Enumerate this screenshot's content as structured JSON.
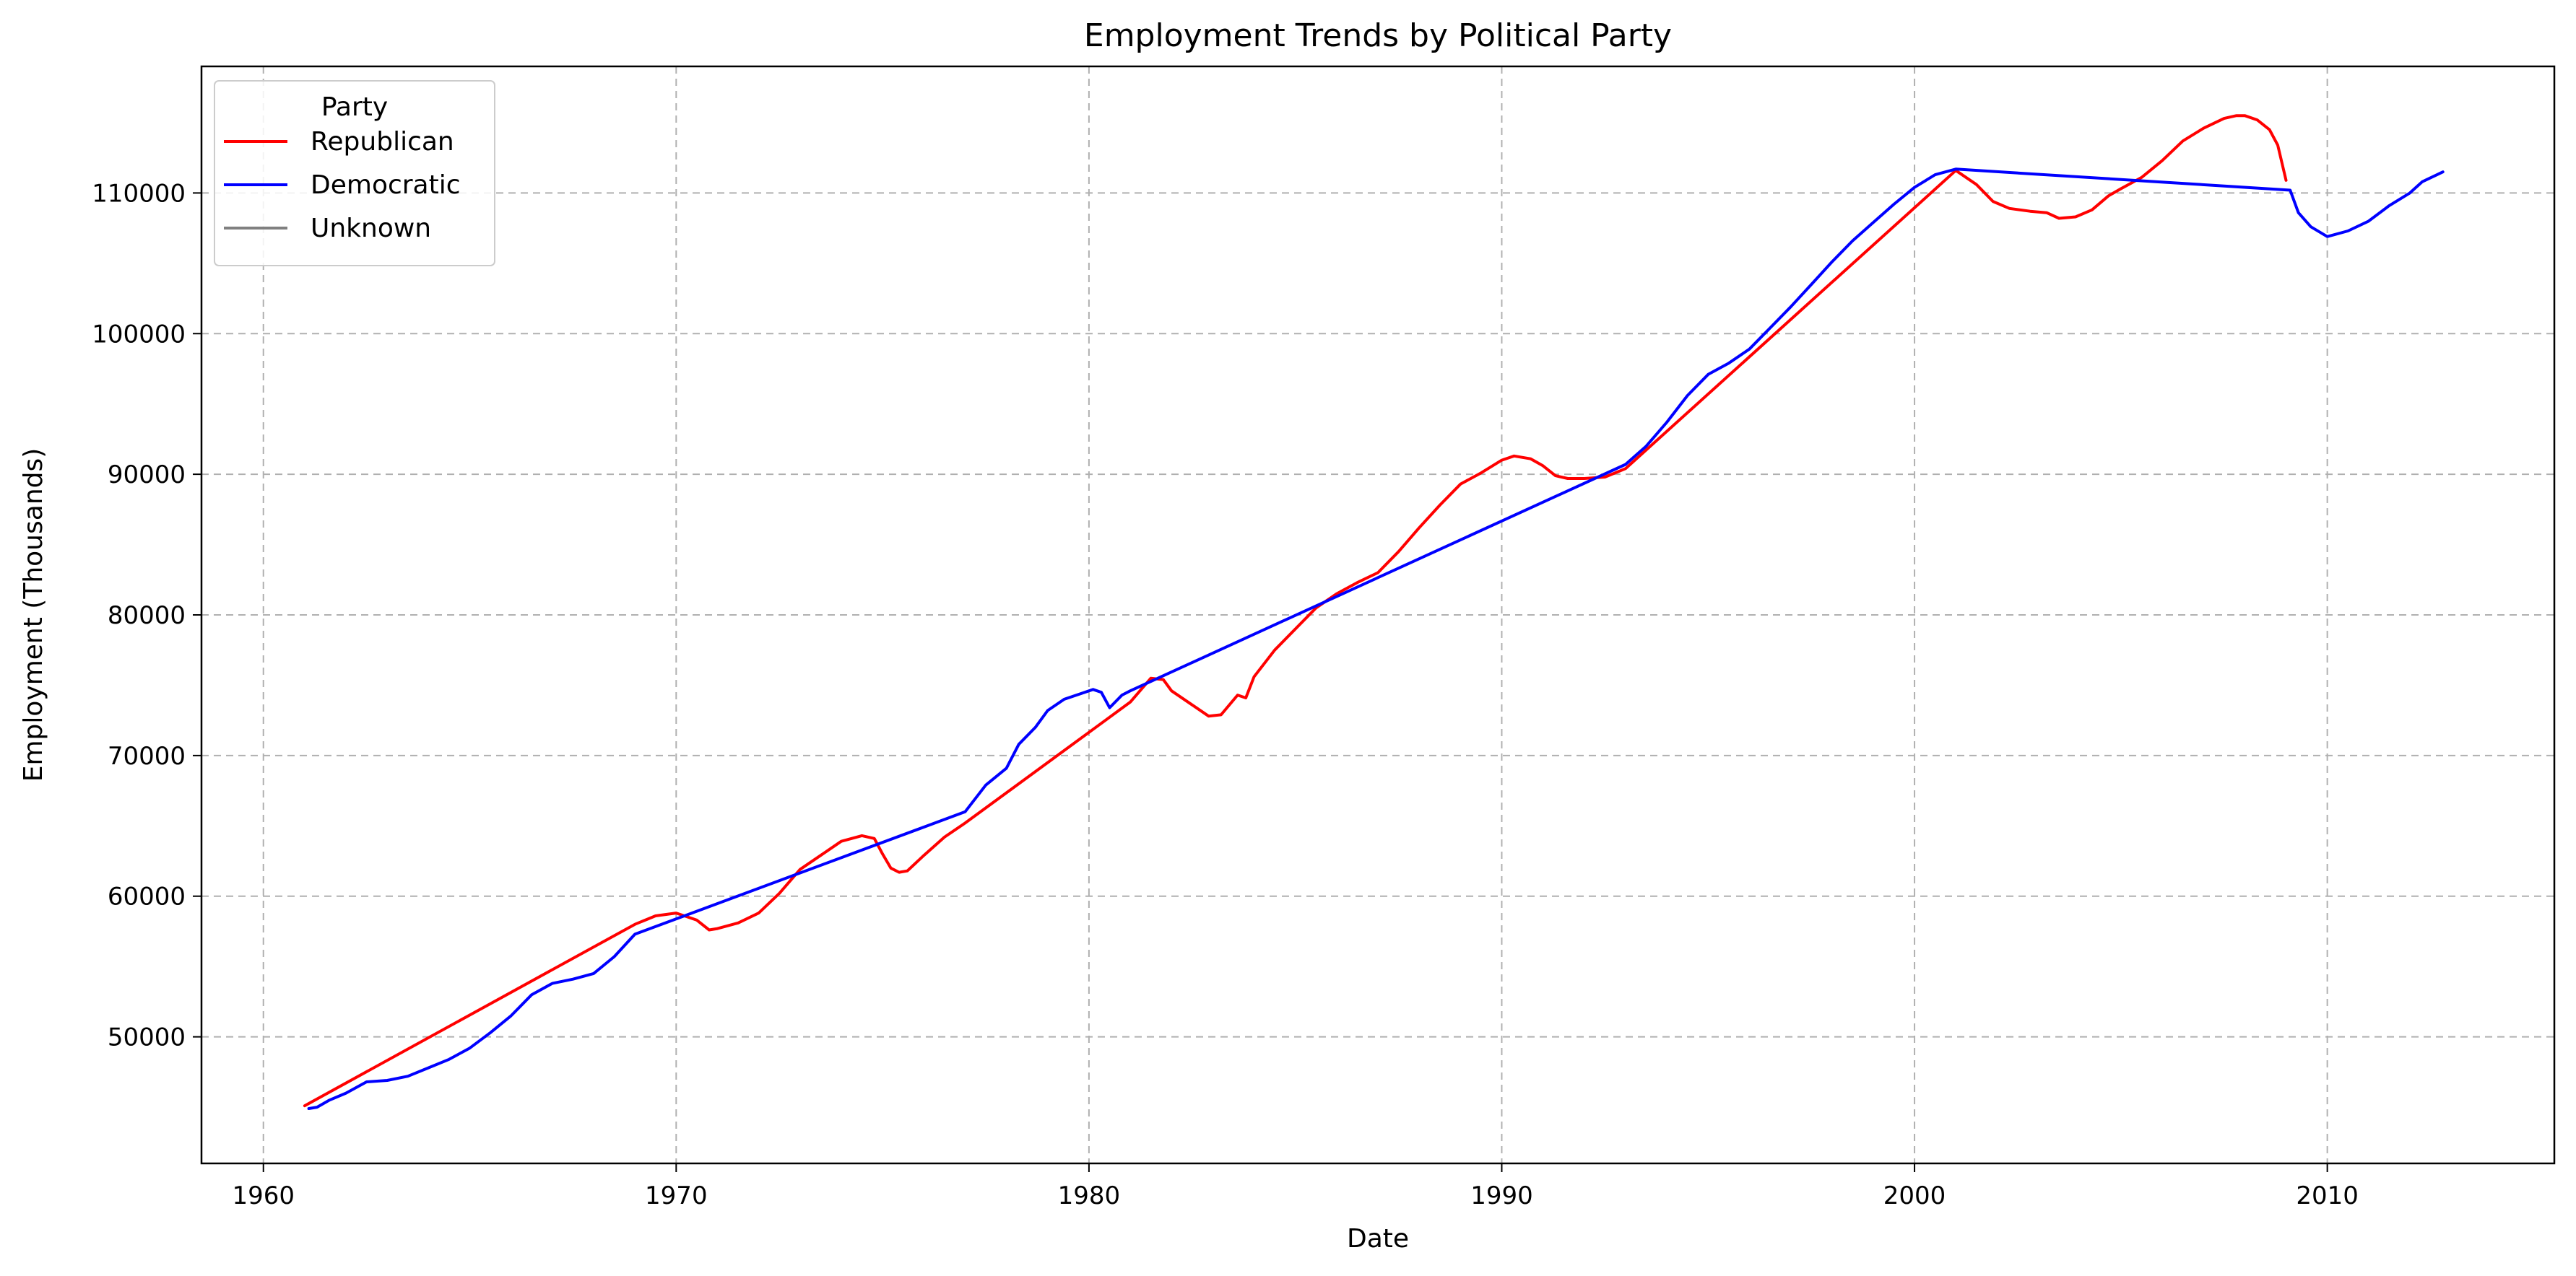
{
  "chart_data": {
    "type": "line",
    "title": "Employment Trends by Political Party",
    "xlabel": "Date",
    "ylabel": "Employment (Thousands)",
    "xlim": [
      1958.5,
      2015.5
    ],
    "ylim": [
      41000,
      119000
    ],
    "x_ticks": [
      1960,
      1970,
      1980,
      1990,
      2000,
      2010
    ],
    "y_ticks": [
      50000,
      60000,
      70000,
      80000,
      90000,
      100000,
      110000
    ],
    "grid": true,
    "legend": {
      "title": "Party",
      "placement": "top-left",
      "entries": [
        "Republican",
        "Democratic",
        "Unknown"
      ]
    },
    "series": [
      {
        "name": "Republican",
        "color": "#ff0000",
        "points": [
          [
            1961.0,
            45100
          ],
          [
            1969.0,
            58000
          ],
          [
            1969.5,
            58600
          ],
          [
            1970.0,
            58800
          ],
          [
            1970.5,
            58300
          ],
          [
            1970.8,
            57600
          ],
          [
            1971.0,
            57700
          ],
          [
            1971.5,
            58100
          ],
          [
            1972.0,
            58800
          ],
          [
            1972.5,
            60200
          ],
          [
            1973.0,
            61900
          ],
          [
            1973.5,
            62900
          ],
          [
            1974.0,
            63900
          ],
          [
            1974.5,
            64300
          ],
          [
            1974.8,
            64100
          ],
          [
            1975.0,
            63000
          ],
          [
            1975.2,
            62000
          ],
          [
            1975.4,
            61700
          ],
          [
            1975.6,
            61800
          ],
          [
            1976.0,
            62900
          ],
          [
            1976.5,
            64200
          ],
          [
            1977.0,
            65200
          ],
          [
            1981.0,
            73800
          ],
          [
            1981.5,
            75500
          ],
          [
            1981.8,
            75400
          ],
          [
            1982.0,
            74600
          ],
          [
            1982.5,
            73600
          ],
          [
            1982.9,
            72800
          ],
          [
            1983.2,
            72900
          ],
          [
            1983.6,
            74300
          ],
          [
            1983.8,
            74100
          ],
          [
            1984.0,
            75600
          ],
          [
            1984.5,
            77500
          ],
          [
            1985.0,
            79000
          ],
          [
            1985.5,
            80500
          ],
          [
            1986.0,
            81500
          ],
          [
            1986.5,
            82300
          ],
          [
            1987.0,
            83000
          ],
          [
            1987.5,
            84500
          ],
          [
            1988.0,
            86200
          ],
          [
            1988.5,
            87800
          ],
          [
            1989.0,
            89300
          ],
          [
            1989.5,
            90100
          ],
          [
            1990.0,
            91000
          ],
          [
            1990.3,
            91300
          ],
          [
            1990.7,
            91100
          ],
          [
            1991.0,
            90600
          ],
          [
            1991.3,
            89900
          ],
          [
            1991.6,
            89700
          ],
          [
            1992.0,
            89700
          ],
          [
            1992.5,
            89800
          ],
          [
            1993.0,
            90400
          ],
          [
            2001.0,
            111600
          ],
          [
            2001.5,
            110600
          ],
          [
            2001.9,
            109400
          ],
          [
            2002.3,
            108900
          ],
          [
            2002.8,
            108700
          ],
          [
            2003.2,
            108600
          ],
          [
            2003.5,
            108200
          ],
          [
            2003.9,
            108300
          ],
          [
            2004.3,
            108800
          ],
          [
            2004.7,
            109800
          ],
          [
            2005.0,
            110300
          ],
          [
            2005.5,
            111100
          ],
          [
            2006.0,
            112300
          ],
          [
            2006.5,
            113700
          ],
          [
            2007.0,
            114600
          ],
          [
            2007.5,
            115300
          ],
          [
            2007.8,
            115500
          ],
          [
            2008.0,
            115500
          ],
          [
            2008.3,
            115200
          ],
          [
            2008.6,
            114500
          ],
          [
            2008.8,
            113400
          ],
          [
            2009.0,
            110900
          ]
        ]
      },
      {
        "name": "Democratic",
        "color": "#0000ff",
        "points": [
          [
            1961.1,
            44900
          ],
          [
            1961.3,
            45000
          ],
          [
            1961.6,
            45500
          ],
          [
            1962.0,
            46000
          ],
          [
            1962.5,
            46800
          ],
          [
            1963.0,
            46900
          ],
          [
            1963.5,
            47200
          ],
          [
            1964.0,
            47800
          ],
          [
            1964.5,
            48400
          ],
          [
            1965.0,
            49200
          ],
          [
            1965.5,
            50300
          ],
          [
            1966.0,
            51500
          ],
          [
            1966.5,
            53000
          ],
          [
            1967.0,
            53800
          ],
          [
            1967.5,
            54100
          ],
          [
            1968.0,
            54500
          ],
          [
            1968.5,
            55700
          ],
          [
            1969.0,
            57300
          ],
          [
            1977.0,
            66000
          ],
          [
            1977.5,
            67900
          ],
          [
            1978.0,
            69100
          ],
          [
            1978.3,
            70800
          ],
          [
            1978.7,
            72000
          ],
          [
            1979.0,
            73200
          ],
          [
            1979.4,
            74000
          ],
          [
            1979.8,
            74400
          ],
          [
            1980.1,
            74700
          ],
          [
            1980.3,
            74500
          ],
          [
            1980.5,
            73400
          ],
          [
            1980.8,
            74300
          ],
          [
            1981.0,
            74600
          ],
          [
            1993.0,
            90700
          ],
          [
            1993.5,
            92000
          ],
          [
            1994.0,
            93700
          ],
          [
            1994.5,
            95600
          ],
          [
            1995.0,
            97100
          ],
          [
            1995.5,
            97900
          ],
          [
            1996.0,
            98900
          ],
          [
            1996.5,
            100400
          ],
          [
            1997.0,
            101900
          ],
          [
            1997.5,
            103500
          ],
          [
            1998.0,
            105100
          ],
          [
            1998.5,
            106600
          ],
          [
            1999.0,
            107900
          ],
          [
            1999.5,
            109200
          ],
          [
            2000.0,
            110400
          ],
          [
            2000.5,
            111300
          ],
          [
            2001.0,
            111700
          ],
          [
            2009.1,
            110200
          ],
          [
            2009.3,
            108600
          ],
          [
            2009.6,
            107600
          ],
          [
            2010.0,
            106900
          ],
          [
            2010.5,
            107300
          ],
          [
            2011.0,
            108000
          ],
          [
            2011.5,
            109100
          ],
          [
            2012.0,
            110000
          ],
          [
            2012.3,
            110800
          ],
          [
            2012.8,
            111500
          ]
        ]
      },
      {
        "name": "Unknown",
        "color": "#808080",
        "points": []
      }
    ]
  }
}
